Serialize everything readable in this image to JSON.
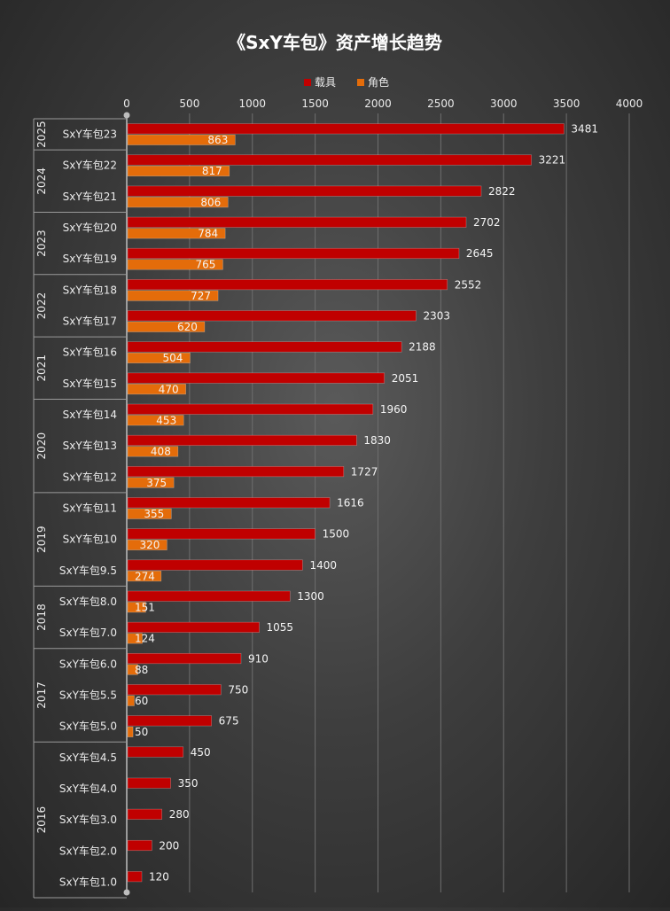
{
  "chart_data": {
    "type": "bar",
    "orientation": "horizontal",
    "title": "《SxY车包》资产增长趋势",
    "legend_position": "top",
    "xlim": [
      0,
      4000
    ],
    "x_ticks": [
      0,
      500,
      1000,
      1500,
      2000,
      2500,
      3000,
      3500,
      4000
    ],
    "grid": true,
    "colors": {
      "载具": "#c00000",
      "角色": "#e46c0a"
    },
    "groups": [
      {
        "year": "2025",
        "categories": [
          "SxY车包23"
        ]
      },
      {
        "year": "2024",
        "categories": [
          "SxY车包22",
          "SxY车包21"
        ]
      },
      {
        "year": "2023",
        "categories": [
          "SxY车包20",
          "SxY车包19"
        ]
      },
      {
        "year": "2022",
        "categories": [
          "SxY车包18",
          "SxY车包17"
        ]
      },
      {
        "year": "2021",
        "categories": [
          "SxY车包16",
          "SxY车包15"
        ]
      },
      {
        "year": "2020",
        "categories": [
          "SxY车包14",
          "SxY车包13",
          "SxY车包12"
        ]
      },
      {
        "year": "2019",
        "categories": [
          "SxY车包11",
          "SxY车包10",
          "SxY车包9.5"
        ]
      },
      {
        "year": "2018",
        "categories": [
          "SxY车包8.0",
          "SxY车包7.0"
        ]
      },
      {
        "year": "2017",
        "categories": [
          "SxY车包6.0",
          "SxY车包5.5",
          "SxY车包5.0"
        ]
      },
      {
        "year": "2016",
        "categories": [
          "SxY车包4.5",
          "SxY车包4.0",
          "SxY车包3.0",
          "SxY车包2.0",
          "SxY车包1.0"
        ]
      }
    ],
    "categories": [
      "SxY车包23",
      "SxY车包22",
      "SxY车包21",
      "SxY车包20",
      "SxY车包19",
      "SxY车包18",
      "SxY车包17",
      "SxY车包16",
      "SxY车包15",
      "SxY车包14",
      "SxY车包13",
      "SxY车包12",
      "SxY车包11",
      "SxY车包10",
      "SxY车包9.5",
      "SxY车包8.0",
      "SxY车包7.0",
      "SxY车包6.0",
      "SxY车包5.5",
      "SxY车包5.0",
      "SxY车包4.5",
      "SxY车包4.0",
      "SxY车包3.0",
      "SxY车包2.0",
      "SxY车包1.0"
    ],
    "series": [
      {
        "name": "载具",
        "values": [
          3481,
          3221,
          2822,
          2702,
          2645,
          2552,
          2303,
          2188,
          2051,
          1960,
          1830,
          1727,
          1616,
          1500,
          1400,
          1300,
          1055,
          910,
          750,
          675,
          450,
          350,
          280,
          200,
          120
        ]
      },
      {
        "name": "角色",
        "values": [
          863,
          817,
          806,
          784,
          765,
          727,
          620,
          504,
          470,
          453,
          408,
          375,
          355,
          320,
          274,
          151,
          124,
          88,
          60,
          50,
          null,
          null,
          null,
          null,
          null
        ]
      }
    ]
  }
}
